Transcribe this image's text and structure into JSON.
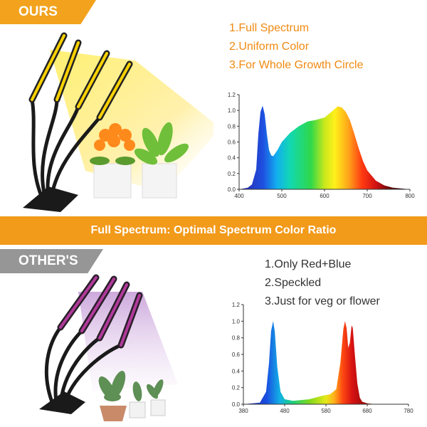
{
  "top": {
    "tag": "OURS",
    "features": [
      "1.Full Spectrum",
      "2.Uniform Color",
      "3.For Whole Growth Circle"
    ]
  },
  "banner": {
    "text": "Full Spectrum: Optimal Spectrum Color Ratio"
  },
  "bottom": {
    "tag": "OTHER'S",
    "features": [
      "1.Only Red+Blue",
      "2.Speckled",
      "3.Just for veg or flower"
    ]
  },
  "colors": {
    "accent": "#f29a1a",
    "gray_tag": "#969696",
    "feature_orange": "#f08a12"
  },
  "chart_data": [
    {
      "type": "area",
      "xlim": [
        400,
        800
      ],
      "ylim": [
        0,
        1.2
      ],
      "xticks": [
        "400",
        "500",
        "600",
        "700",
        "800"
      ],
      "yticks": [
        "0.0",
        "0.2",
        "0.4",
        "0.6",
        "0.8",
        "1.0",
        "1.2"
      ],
      "x": [
        400,
        420,
        430,
        440,
        445,
        450,
        455,
        460,
        465,
        470,
        475,
        480,
        490,
        500,
        520,
        540,
        560,
        580,
        600,
        620,
        630,
        640,
        650,
        660,
        670,
        680,
        690,
        700,
        720,
        740,
        760,
        780,
        800
      ],
      "y": [
        0.0,
        0.02,
        0.06,
        0.25,
        0.7,
        0.98,
        1.06,
        0.95,
        0.7,
        0.5,
        0.43,
        0.42,
        0.5,
        0.6,
        0.72,
        0.8,
        0.86,
        0.88,
        0.91,
        1.0,
        1.05,
        1.04,
        0.98,
        0.87,
        0.7,
        0.52,
        0.36,
        0.24,
        0.11,
        0.05,
        0.02,
        0.01,
        0.0
      ]
    },
    {
      "type": "area",
      "xlim": [
        380,
        780
      ],
      "ylim": [
        0,
        1.2
      ],
      "xticks": [
        "380",
        "480",
        "580",
        "680",
        "780"
      ],
      "yticks": [
        "0.0",
        "0.2",
        "0.4",
        "0.6",
        "0.8",
        "1.0",
        "1.2"
      ],
      "x": [
        380,
        420,
        435,
        442,
        447,
        452,
        456,
        462,
        470,
        480,
        500,
        540,
        570,
        590,
        605,
        615,
        622,
        626,
        630,
        634,
        638,
        642,
        645,
        650,
        656,
        662,
        668,
        680,
        700,
        780
      ],
      "y": [
        0.0,
        0.02,
        0.15,
        0.5,
        0.88,
        1.0,
        0.88,
        0.45,
        0.15,
        0.06,
        0.04,
        0.06,
        0.1,
        0.12,
        0.18,
        0.5,
        0.9,
        1.0,
        0.92,
        0.68,
        0.74,
        0.95,
        0.92,
        0.6,
        0.25,
        0.08,
        0.03,
        0.01,
        0.0,
        0.0
      ]
    }
  ]
}
